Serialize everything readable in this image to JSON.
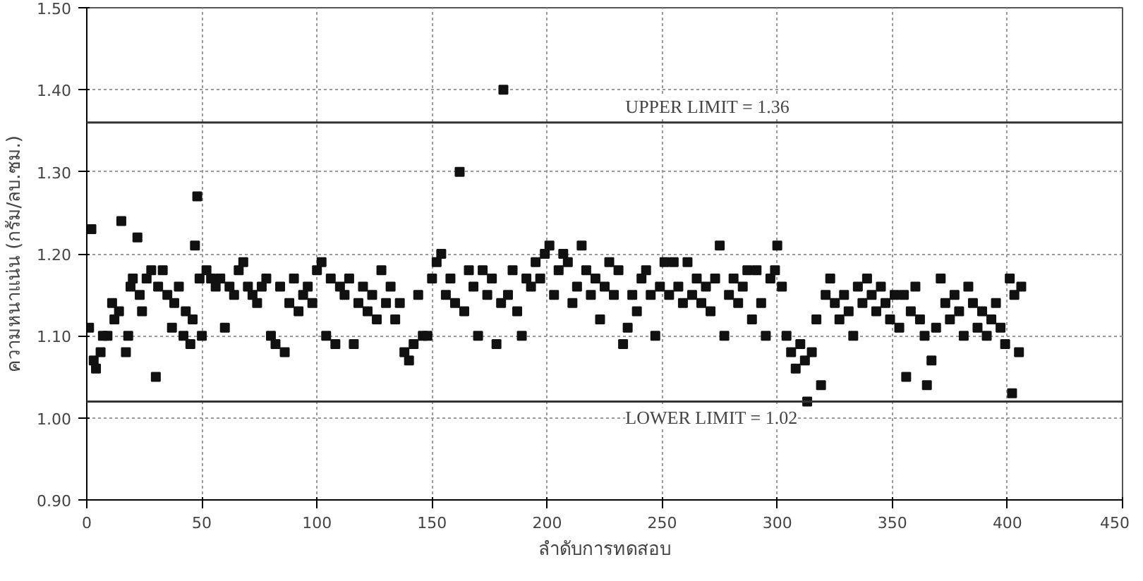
{
  "chart_data": {
    "type": "scatter",
    "xlabel": "ลำดับการทดสอบ",
    "ylabel": "ความหนาแน่น (กรัม/ลบ.ซม.)",
    "xlim": [
      0,
      450
    ],
    "ylim": [
      0.9,
      1.5
    ],
    "xticks": [
      0,
      50,
      100,
      150,
      200,
      250,
      300,
      350,
      400,
      450
    ],
    "yticks": [
      {
        "value": 0.9,
        "label": "0.90"
      },
      {
        "value": 1.0,
        "label": "1.00"
      },
      {
        "value": 1.1,
        "label": "1.10"
      },
      {
        "value": 1.2,
        "label": "1.20"
      },
      {
        "value": 1.3,
        "label": "1.30"
      },
      {
        "value": 1.4,
        "label": "1.40"
      },
      {
        "value": 1.5,
        "label": "1.50"
      }
    ],
    "grid": true,
    "marker": "square",
    "ref_lines": [
      {
        "axis": "y",
        "value": 1.36,
        "label": "UPPER LIMIT = 1.36",
        "color": "#333333"
      },
      {
        "axis": "y",
        "value": 1.02,
        "label": "LOWER LIMIT = 1.02",
        "color": "#333333"
      }
    ],
    "series": [
      {
        "color": "#111111",
        "x": [
          1,
          2,
          3,
          4,
          6,
          7,
          9,
          11,
          12,
          14,
          15,
          17,
          18,
          19,
          20,
          22,
          23,
          24,
          26,
          28,
          30,
          31,
          33,
          35,
          37,
          38,
          40,
          42,
          43,
          45,
          46,
          47,
          48,
          49,
          50,
          52,
          54,
          56,
          58,
          60,
          62,
          64,
          66,
          68,
          70,
          72,
          74,
          76,
          78,
          80,
          82,
          84,
          86,
          88,
          90,
          92,
          94,
          96,
          98,
          100,
          102,
          104,
          106,
          108,
          110,
          112,
          114,
          116,
          118,
          120,
          122,
          124,
          126,
          128,
          130,
          132,
          134,
          136,
          138,
          140,
          142,
          144,
          146,
          148,
          150,
          152,
          154,
          156,
          158,
          160,
          162,
          164,
          166,
          168,
          170,
          172,
          174,
          176,
          178,
          180,
          181,
          183,
          185,
          187,
          189,
          191,
          193,
          195,
          197,
          199,
          201,
          203,
          205,
          207,
          209,
          211,
          213,
          215,
          217,
          219,
          221,
          223,
          225,
          227,
          229,
          231,
          233,
          235,
          237,
          239,
          241,
          243,
          245,
          247,
          249,
          251,
          253,
          255,
          257,
          259,
          261,
          263,
          265,
          267,
          269,
          271,
          273,
          275,
          277,
          279,
          281,
          283,
          285,
          287,
          289,
          291,
          293,
          295,
          297,
          299,
          300,
          302,
          304,
          306,
          308,
          310,
          312,
          313,
          315,
          317,
          319,
          321,
          323,
          325,
          327,
          329,
          331,
          333,
          335,
          337,
          339,
          341,
          343,
          345,
          347,
          349,
          351,
          353,
          355,
          356,
          358,
          360,
          362,
          364,
          365,
          367,
          369,
          371,
          373,
          375,
          377,
          379,
          381,
          383,
          385,
          387,
          389,
          391,
          393,
          395,
          397,
          399,
          401,
          402,
          403,
          405,
          406
        ],
        "values": [
          1.11,
          1.23,
          1.07,
          1.06,
          1.08,
          1.1,
          1.1,
          1.14,
          1.12,
          1.13,
          1.24,
          1.08,
          1.1,
          1.16,
          1.17,
          1.22,
          1.15,
          1.13,
          1.17,
          1.18,
          1.05,
          1.16,
          1.18,
          1.15,
          1.11,
          1.14,
          1.16,
          1.1,
          1.13,
          1.09,
          1.12,
          1.21,
          1.27,
          1.17,
          1.1,
          1.18,
          1.17,
          1.16,
          1.17,
          1.11,
          1.16,
          1.15,
          1.18,
          1.19,
          1.16,
          1.15,
          1.14,
          1.16,
          1.17,
          1.1,
          1.09,
          1.16,
          1.08,
          1.14,
          1.17,
          1.13,
          1.15,
          1.16,
          1.14,
          1.18,
          1.19,
          1.1,
          1.17,
          1.09,
          1.16,
          1.15,
          1.17,
          1.09,
          1.14,
          1.16,
          1.13,
          1.15,
          1.12,
          1.18,
          1.14,
          1.16,
          1.12,
          1.14,
          1.08,
          1.07,
          1.09,
          1.15,
          1.1,
          1.1,
          1.17,
          1.19,
          1.2,
          1.15,
          1.17,
          1.14,
          1.3,
          1.13,
          1.18,
          1.16,
          1.1,
          1.18,
          1.15,
          1.17,
          1.09,
          1.14,
          1.4,
          1.15,
          1.18,
          1.13,
          1.1,
          1.17,
          1.16,
          1.19,
          1.17,
          1.2,
          1.21,
          1.15,
          1.18,
          1.2,
          1.19,
          1.14,
          1.16,
          1.21,
          1.18,
          1.15,
          1.17,
          1.12,
          1.16,
          1.19,
          1.15,
          1.18,
          1.09,
          1.11,
          1.15,
          1.13,
          1.17,
          1.18,
          1.15,
          1.1,
          1.16,
          1.19,
          1.15,
          1.19,
          1.16,
          1.14,
          1.19,
          1.15,
          1.17,
          1.14,
          1.16,
          1.13,
          1.17,
          1.21,
          1.1,
          1.15,
          1.17,
          1.14,
          1.16,
          1.18,
          1.12,
          1.18,
          1.14,
          1.1,
          1.17,
          1.18,
          1.21,
          1.16,
          1.1,
          1.08,
          1.06,
          1.09,
          1.07,
          1.02,
          1.08,
          1.12,
          1.04,
          1.15,
          1.17,
          1.14,
          1.12,
          1.15,
          1.13,
          1.1,
          1.16,
          1.14,
          1.17,
          1.15,
          1.13,
          1.16,
          1.14,
          1.12,
          1.15,
          1.11,
          1.15,
          1.05,
          1.13,
          1.16,
          1.12,
          1.1,
          1.04,
          1.07,
          1.11,
          1.17,
          1.14,
          1.12,
          1.15,
          1.13,
          1.1,
          1.16,
          1.14,
          1.11,
          1.13,
          1.1,
          1.12,
          1.14,
          1.11,
          1.09,
          1.17,
          1.03,
          1.15,
          1.08,
          1.16
        ]
      }
    ]
  }
}
